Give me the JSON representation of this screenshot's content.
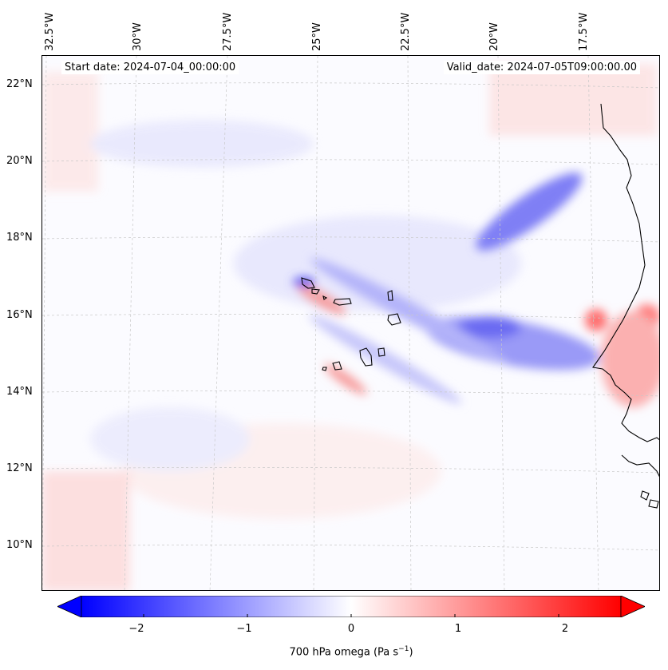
{
  "map": {
    "title_left": "Start date: 2024-07-04_00:00:00",
    "title_right": "Valid_date: 2024-07-05T09:00:00.00",
    "lon_labels": [
      "32.5°W",
      "30°W",
      "27.5°W",
      "25°W",
      "22.5°W",
      "20°W",
      "17.5°W"
    ],
    "lat_labels": [
      "22°N",
      "20°N",
      "18°N",
      "16°N",
      "14°N",
      "12°N",
      "10°N"
    ],
    "variable": "700 hPa omega",
    "units_prefix": "700 hPa omega (Pa s",
    "units_exp": "−1",
    "units_suffix": ")",
    "colormap": "bwr",
    "colors": {
      "negative": "#0000ff",
      "neutral": "#ffffff",
      "positive": "#ff0000",
      "coast": "#000000",
      "grid": "#c8c8c8"
    }
  },
  "colorbar": {
    "min": -2.6,
    "max": 2.6,
    "levels": 52,
    "ticks": [
      "−2",
      "−1",
      "0",
      "1",
      "2"
    ],
    "tick_values": [
      -2,
      -1,
      0,
      1,
      2
    ],
    "extend": "both"
  }
}
